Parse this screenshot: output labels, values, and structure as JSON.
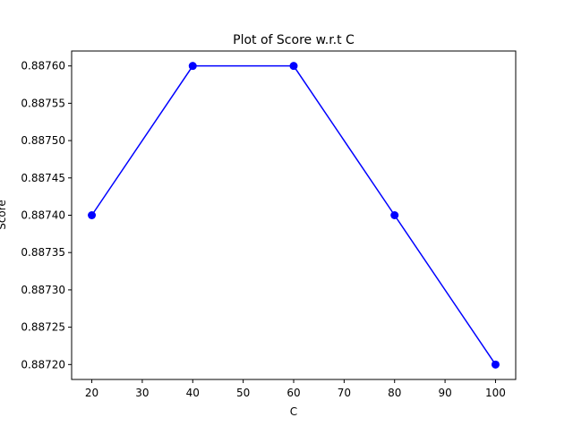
{
  "chart_data": {
    "type": "line",
    "title": "Plot of Score w.r.t C",
    "xlabel": "C",
    "ylabel": "Score",
    "x": [
      20,
      40,
      60,
      80,
      100
    ],
    "series": [
      {
        "values": [
          0.8874,
          0.8876,
          0.8876,
          0.8874,
          0.8872
        ],
        "color": "#0000ff",
        "marker": "circle"
      }
    ],
    "xlim": [
      16,
      104
    ],
    "ylim": [
      0.88718,
      0.88762
    ],
    "xticks": [
      20,
      30,
      40,
      50,
      60,
      70,
      80,
      90,
      100
    ],
    "yticks": [
      0.8872,
      0.88725,
      0.8873,
      0.88735,
      0.8874,
      0.88745,
      0.8875,
      0.88755,
      0.8876
    ],
    "ytick_labels": [
      "0.88720",
      "0.88725",
      "0.88730",
      "0.88735",
      "0.88740",
      "0.88745",
      "0.88750",
      "0.88755",
      "0.88760"
    ],
    "grid": false,
    "legend": "none"
  }
}
